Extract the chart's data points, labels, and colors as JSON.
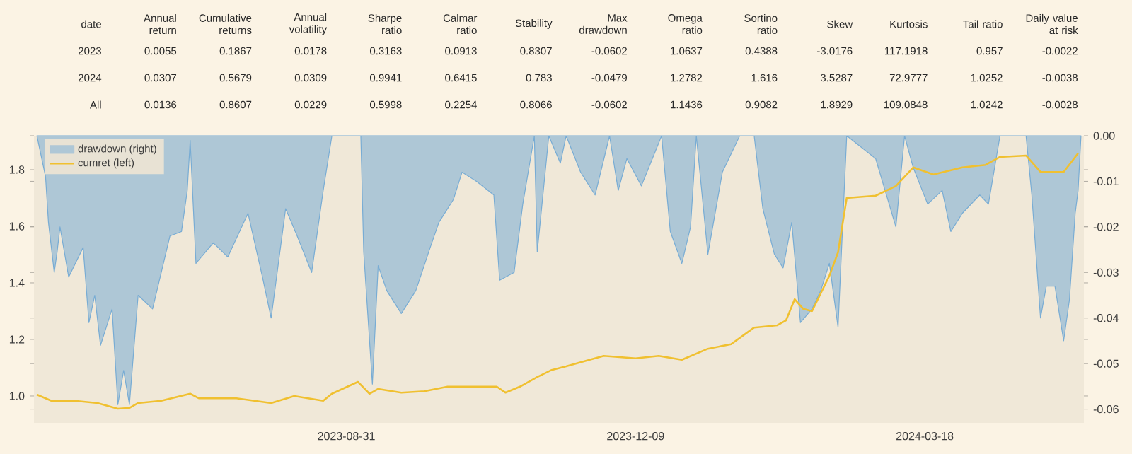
{
  "chart_data": [
    {
      "type": "other",
      "categories": [
        "date",
        "Annual return",
        "Cumulative returns",
        "Annual volatility",
        "Sharpe ratio",
        "Calmar ratio",
        "Stability",
        "Max drawdown",
        "Omega ratio",
        "Sortino ratio",
        "Skew",
        "Kurtosis",
        "Tail ratio",
        "Daily value at risk"
      ],
      "y_categories": [
        "2023",
        "2024",
        "All"
      ],
      "annotations": [
        "0.0055",
        "0.1867",
        "0.0178",
        "0.3163",
        "0.0913",
        "0.8307",
        "-0.0602",
        "1.0637",
        "0.4388",
        "-3.0176",
        "117.1918",
        "0.957",
        "-0.0022",
        "0.0307",
        "0.5679",
        "0.0309",
        "0.9941",
        "0.6415",
        "0.783",
        "-0.0479",
        "1.2782",
        "1.616",
        "3.5287",
        "72.9777",
        "1.0252",
        "-0.0038",
        "0.0136",
        "0.8607",
        "0.0229",
        "0.5998",
        "0.2254",
        "0.8066",
        "-0.0602",
        "1.1436",
        "0.9082",
        "1.8929",
        "109.0848",
        "1.0242",
        "-0.0028"
      ]
    },
    {
      "type": "line",
      "legend": "top left",
      "xlim": [
        "2023-05-15",
        "2024-05-12"
      ],
      "xticks": [
        "2023-08-31",
        "2023-12-09",
        "2024-03-18"
      ],
      "ylim": [
        0.905,
        1.92
      ],
      "yticks": [
        {
          "value": 1.0,
          "label": "1.0"
        },
        {
          "value": 1.2,
          "label": "1.2"
        },
        {
          "value": 1.4,
          "label": "1.4"
        },
        {
          "value": 1.6,
          "label": "1.6"
        },
        {
          "value": 1.8,
          "label": "1.8"
        }
      ],
      "y2lim": [
        -0.063,
        0
      ],
      "y2ticks": [
        {
          "value": -0.06,
          "label": "-0.06"
        },
        {
          "value": -0.05,
          "label": "-0.05"
        },
        {
          "value": -0.04,
          "label": "-0.04"
        },
        {
          "value": -0.03,
          "label": "-0.03"
        },
        {
          "value": -0.02,
          "label": "-0.02"
        },
        {
          "value": -0.01,
          "label": "-0.01"
        },
        {
          "value": 0,
          "label": "0.00"
        }
      ],
      "series": [
        {
          "name": "drawdown (right)",
          "type": "area",
          "axis": "y2",
          "color": "#78acd4",
          "x": [
            "2023-05-16",
            "2023-05-19",
            "2023-05-20",
            "2023-05-22",
            "2023-05-23",
            "2023-05-24",
            "2023-05-27",
            "2023-06-01",
            "2023-06-03",
            "2023-06-05",
            "2023-06-07",
            "2023-06-11",
            "2023-06-13",
            "2023-06-15",
            "2023-06-17",
            "2023-06-20",
            "2023-06-25",
            "2023-07-01",
            "2023-07-05",
            "2023-07-07",
            "2023-07-08",
            "2023-07-10",
            "2023-07-16",
            "2023-07-21",
            "2023-07-28",
            "2023-08-02",
            "2023-08-05",
            "2023-08-10",
            "2023-08-14",
            "2023-08-19",
            "2023-08-23",
            "2023-08-26",
            "2023-09-01",
            "2023-09-05",
            "2023-09-06",
            "2023-09-09",
            "2023-09-11",
            "2023-09-14",
            "2023-09-19",
            "2023-09-24",
            "2023-09-29",
            "2023-10-02",
            "2023-10-07",
            "2023-10-10",
            "2023-10-15",
            "2023-10-21",
            "2023-10-23",
            "2023-10-28",
            "2023-10-31",
            "2023-11-04",
            "2023-11-05",
            "2023-11-09",
            "2023-11-13",
            "2023-11-15",
            "2023-11-20",
            "2023-11-25",
            "2023-11-30",
            "2023-12-03",
            "2023-12-06",
            "2023-12-11",
            "2023-12-18",
            "2023-12-21",
            "2023-12-25",
            "2023-12-28",
            "2023-12-30",
            "2024-01-03",
            "2024-01-08",
            "2024-01-14",
            "2024-01-19",
            "2024-01-22",
            "2024-01-26",
            "2024-01-29",
            "2024-02-01",
            "2024-02-04",
            "2024-02-08",
            "2024-02-11",
            "2024-02-14",
            "2024-02-17",
            "2024-02-20",
            "2024-03-01",
            "2024-03-08",
            "2024-03-11",
            "2024-03-14",
            "2024-03-19",
            "2024-03-24",
            "2024-03-27",
            "2024-03-31",
            "2024-04-06",
            "2024-04-09",
            "2024-04-13",
            "2024-04-22",
            "2024-04-24",
            "2024-04-27",
            "2024-04-29",
            "2024-05-02",
            "2024-05-05",
            "2024-05-07",
            "2024-05-09",
            "2024-05-10",
            "2024-05-11"
          ],
          "values": [
            0,
            -0.009,
            -0.019,
            -0.03,
            -0.0255,
            -0.02,
            -0.031,
            -0.0245,
            -0.041,
            -0.035,
            -0.046,
            -0.038,
            -0.059,
            -0.0515,
            -0.059,
            -0.035,
            -0.038,
            -0.022,
            -0.021,
            -0.012,
            -0.001,
            -0.028,
            -0.0235,
            -0.0266,
            -0.017,
            -0.031,
            -0.04,
            -0.016,
            -0.022,
            -0.03,
            -0.012,
            0,
            0,
            0,
            -0.0255,
            -0.0545,
            -0.0285,
            -0.034,
            -0.039,
            -0.034,
            -0.0245,
            -0.019,
            -0.014,
            -0.008,
            -0.01,
            -0.013,
            -0.0317,
            -0.03,
            -0.015,
            0,
            -0.0255,
            0,
            -0.006,
            0,
            -0.008,
            -0.013,
            0,
            -0.012,
            -0.005,
            -0.011,
            0,
            -0.021,
            -0.028,
            -0.02,
            0,
            -0.026,
            -0.008,
            0,
            0,
            -0.016,
            -0.026,
            -0.029,
            -0.019,
            -0.041,
            -0.038,
            -0.034,
            -0.028,
            -0.042,
            0,
            -0.005,
            -0.02,
            0,
            -0.007,
            -0.015,
            -0.012,
            -0.021,
            -0.017,
            -0.013,
            -0.015,
            0,
            0,
            -0.013,
            -0.04,
            -0.033,
            -0.033,
            -0.045,
            -0.036,
            -0.017,
            -0.012,
            0
          ]
        },
        {
          "name": "cumret (left)",
          "type": "line",
          "axis": "y",
          "color": "#f0c030",
          "x": [
            "2023-05-16",
            "2023-05-21",
            "2023-05-29",
            "2023-06-06",
            "2023-06-13",
            "2023-06-17",
            "2023-06-20",
            "2023-06-28",
            "2023-07-08",
            "2023-07-11",
            "2023-07-24",
            "2023-08-05",
            "2023-08-13",
            "2023-08-23",
            "2023-08-26",
            "2023-09-04",
            "2023-09-08",
            "2023-09-11",
            "2023-09-19",
            "2023-09-27",
            "2023-10-05",
            "2023-10-22",
            "2023-10-25",
            "2023-10-30",
            "2023-11-05",
            "2023-11-10",
            "2023-11-15",
            "2023-11-28",
            "2023-12-09",
            "2023-12-17",
            "2023-12-25",
            "2024-01-03",
            "2024-01-11",
            "2024-01-19",
            "2024-01-27",
            "2024-01-30",
            "2024-02-02",
            "2024-02-05",
            "2024-02-08",
            "2024-02-14",
            "2024-02-17",
            "2024-02-20",
            "2024-03-01",
            "2024-03-08",
            "2024-03-14",
            "2024-03-21",
            "2024-03-31",
            "2024-04-08",
            "2024-04-13",
            "2024-04-22",
            "2024-04-27",
            "2024-05-05",
            "2024-05-10"
          ],
          "values": [
            1.005,
            0.983,
            0.983,
            0.975,
            0.955,
            0.958,
            0.975,
            0.983,
            1.008,
            0.992,
            0.992,
            0.975,
            1.0,
            0.983,
            1.008,
            1.05,
            1.008,
            1.025,
            1.012,
            1.017,
            1.033,
            1.033,
            1.012,
            1.033,
            1.067,
            1.092,
            1.105,
            1.142,
            1.133,
            1.142,
            1.128,
            1.167,
            1.183,
            1.242,
            1.25,
            1.267,
            1.342,
            1.308,
            1.3,
            1.425,
            1.508,
            1.7,
            1.708,
            1.742,
            1.808,
            1.783,
            1.808,
            1.817,
            1.845,
            1.85,
            1.792,
            1.792,
            1.858
          ]
        }
      ]
    }
  ]
}
